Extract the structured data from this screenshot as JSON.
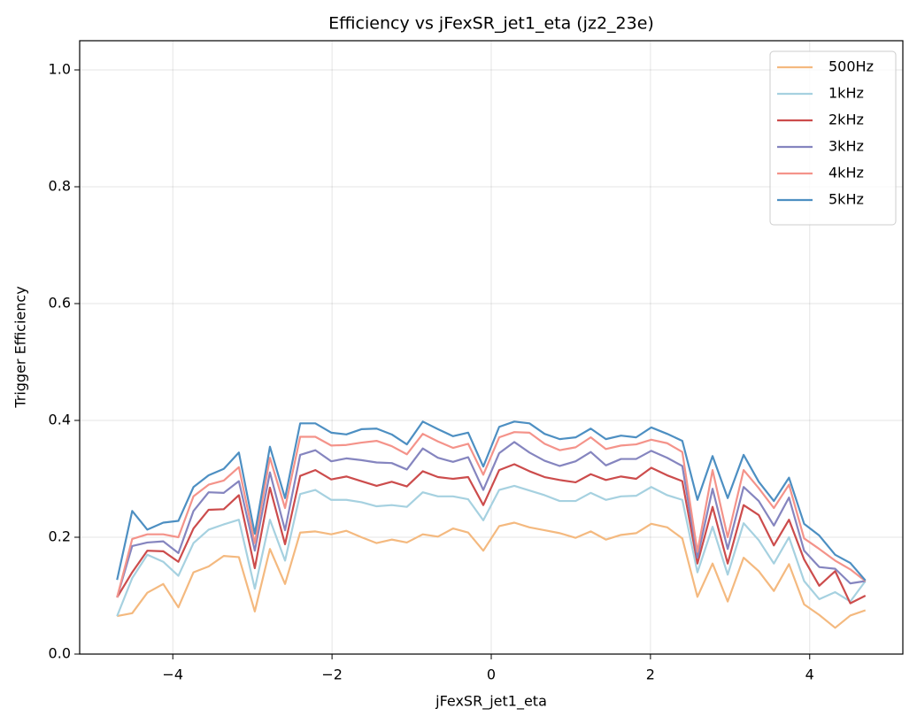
{
  "chart_data": {
    "type": "line",
    "title": "Efficiency vs jFexSR_jet1_eta (jz2_23e)",
    "xlabel": "jFexSR_jet1_eta",
    "ylabel": "Trigger Efficiency",
    "x": [
      -4.7,
      -4.51,
      -4.32,
      -4.12,
      -3.93,
      -3.74,
      -3.55,
      -3.36,
      -3.17,
      -2.97,
      -2.78,
      -2.59,
      -2.4,
      -2.21,
      -2.01,
      -1.82,
      -1.63,
      -1.44,
      -1.25,
      -1.06,
      -0.86,
      -0.67,
      -0.48,
      -0.29,
      -0.1,
      0.1,
      0.29,
      0.48,
      0.67,
      0.86,
      1.06,
      1.25,
      1.44,
      1.63,
      1.82,
      2.01,
      2.21,
      2.4,
      2.59,
      2.78,
      2.97,
      3.17,
      3.36,
      3.55,
      3.74,
      3.93,
      4.12,
      4.32,
      4.51,
      4.7
    ],
    "series": [
      {
        "name": "500Hz",
        "color": "#f4b97f",
        "values": [
          0.065,
          0.07,
          0.105,
          0.12,
          0.08,
          0.14,
          0.15,
          0.168,
          0.166,
          0.073,
          0.18,
          0.12,
          0.208,
          0.21,
          0.205,
          0.211,
          0.2,
          0.19,
          0.196,
          0.191,
          0.205,
          0.201,
          0.215,
          0.208,
          0.177,
          0.219,
          0.225,
          0.217,
          0.212,
          0.207,
          0.199,
          0.21,
          0.196,
          0.204,
          0.207,
          0.223,
          0.217,
          0.198,
          0.098,
          0.155,
          0.09,
          0.165,
          0.142,
          0.108,
          0.154,
          0.085,
          0.067,
          0.045,
          0.066,
          0.075
        ]
      },
      {
        "name": "1kHz",
        "color": "#a6d1e0",
        "values": [
          0.065,
          0.13,
          0.17,
          0.158,
          0.134,
          0.19,
          0.213,
          0.222,
          0.23,
          0.112,
          0.23,
          0.16,
          0.274,
          0.281,
          0.264,
          0.264,
          0.26,
          0.253,
          0.255,
          0.252,
          0.277,
          0.27,
          0.27,
          0.265,
          0.229,
          0.281,
          0.288,
          0.28,
          0.272,
          0.262,
          0.262,
          0.276,
          0.264,
          0.27,
          0.271,
          0.286,
          0.272,
          0.264,
          0.14,
          0.218,
          0.136,
          0.224,
          0.195,
          0.155,
          0.2,
          0.125,
          0.094,
          0.106,
          0.09,
          0.125
        ]
      },
      {
        "name": "2kHz",
        "color": "#cc4c4c",
        "values": [
          0.097,
          0.14,
          0.177,
          0.176,
          0.158,
          0.215,
          0.247,
          0.248,
          0.272,
          0.147,
          0.285,
          0.188,
          0.305,
          0.315,
          0.299,
          0.304,
          0.296,
          0.288,
          0.295,
          0.287,
          0.313,
          0.303,
          0.3,
          0.303,
          0.255,
          0.315,
          0.325,
          0.313,
          0.303,
          0.298,
          0.294,
          0.308,
          0.298,
          0.304,
          0.3,
          0.319,
          0.306,
          0.296,
          0.155,
          0.252,
          0.155,
          0.255,
          0.238,
          0.186,
          0.23,
          0.162,
          0.117,
          0.142,
          0.087,
          0.1
        ]
      },
      {
        "name": "3kHz",
        "color": "#8585bf",
        "values": [
          0.097,
          0.185,
          0.191,
          0.193,
          0.173,
          0.245,
          0.277,
          0.276,
          0.296,
          0.177,
          0.311,
          0.212,
          0.341,
          0.349,
          0.33,
          0.335,
          0.332,
          0.328,
          0.327,
          0.316,
          0.352,
          0.336,
          0.329,
          0.337,
          0.281,
          0.344,
          0.363,
          0.345,
          0.331,
          0.322,
          0.33,
          0.346,
          0.323,
          0.334,
          0.334,
          0.348,
          0.336,
          0.322,
          0.165,
          0.283,
          0.18,
          0.286,
          0.262,
          0.22,
          0.268,
          0.177,
          0.149,
          0.146,
          0.121,
          0.125
        ]
      },
      {
        "name": "4kHz",
        "color": "#f4938a",
        "values": [
          0.097,
          0.197,
          0.205,
          0.205,
          0.2,
          0.27,
          0.29,
          0.297,
          0.32,
          0.19,
          0.336,
          0.25,
          0.372,
          0.372,
          0.357,
          0.358,
          0.362,
          0.365,
          0.356,
          0.342,
          0.377,
          0.364,
          0.353,
          0.36,
          0.307,
          0.371,
          0.38,
          0.379,
          0.36,
          0.349,
          0.354,
          0.371,
          0.351,
          0.357,
          0.359,
          0.367,
          0.361,
          0.346,
          0.175,
          0.315,
          0.2,
          0.315,
          0.284,
          0.25,
          0.29,
          0.198,
          0.18,
          0.16,
          0.145,
          0.125
        ]
      },
      {
        "name": "5kHz",
        "color": "#4d8fc2",
        "values": [
          0.127,
          0.245,
          0.213,
          0.225,
          0.228,
          0.286,
          0.306,
          0.317,
          0.345,
          0.206,
          0.355,
          0.267,
          0.395,
          0.395,
          0.379,
          0.376,
          0.385,
          0.386,
          0.376,
          0.359,
          0.398,
          0.385,
          0.373,
          0.379,
          0.321,
          0.389,
          0.398,
          0.395,
          0.377,
          0.368,
          0.371,
          0.386,
          0.368,
          0.374,
          0.371,
          0.388,
          0.377,
          0.365,
          0.264,
          0.339,
          0.267,
          0.341,
          0.295,
          0.262,
          0.302,
          0.223,
          0.203,
          0.17,
          0.156,
          0.126
        ]
      }
    ],
    "xlim": [
      -5.17,
      5.17
    ],
    "ylim": [
      0,
      1.05
    ],
    "xticks": [
      {
        "value": -4,
        "label": "−4"
      },
      {
        "value": -2,
        "label": "−2"
      },
      0,
      2,
      4
    ],
    "yticks": [
      {
        "value": 0,
        "label": "0.0"
      },
      0.2,
      0.4,
      0.6,
      0.8,
      {
        "value": 1,
        "label": "1.0"
      }
    ],
    "grid": true,
    "legend": "upper right"
  }
}
